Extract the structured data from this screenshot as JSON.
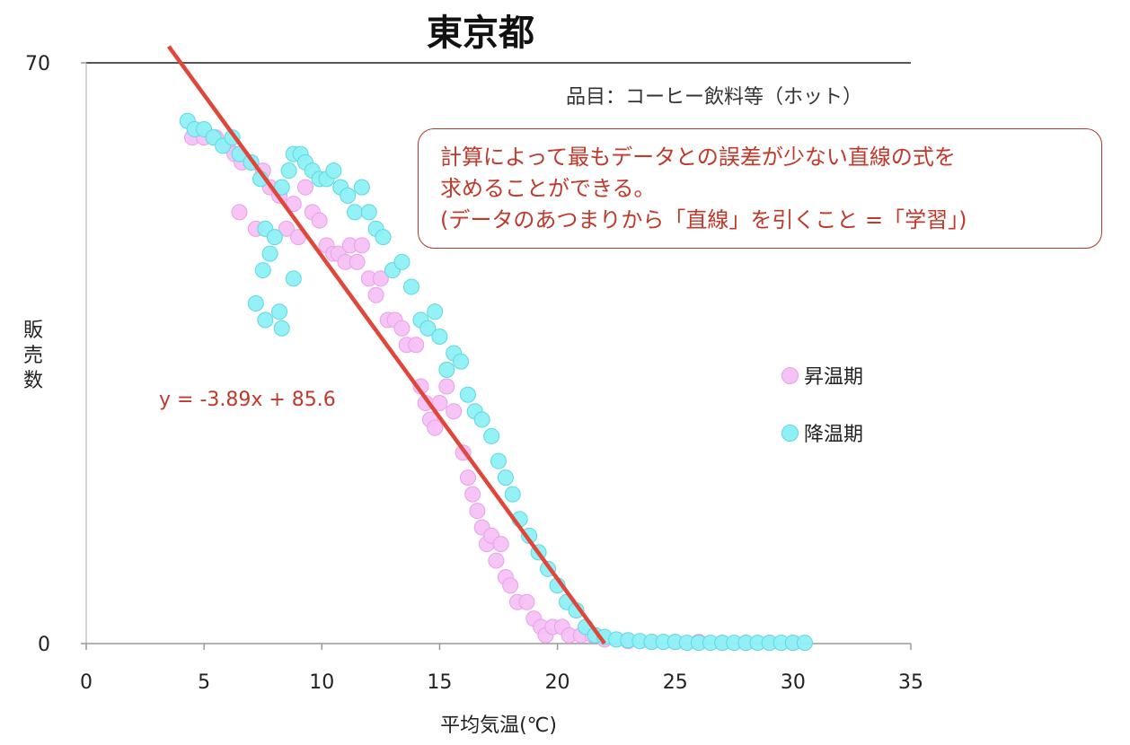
{
  "chart_data": {
    "type": "scatter",
    "title": "東京都",
    "subtitle": "品目：コーヒー飲料等（ホット）",
    "xlabel": "平均気温(℃)",
    "ylabel": "販売数",
    "xlim": [
      0,
      35
    ],
    "ylim": [
      0,
      70
    ],
    "xticks": [
      "0",
      "5",
      "10",
      "15",
      "20",
      "25",
      "30",
      "35"
    ],
    "yticks": [
      "0",
      "70"
    ],
    "legend_position": "right",
    "grid": false,
    "series": [
      {
        "name": "昇温期",
        "color": "#f5c2f5",
        "stroke": "#e8a0ea",
        "points": [
          [
            4.5,
            61
          ],
          [
            5,
            61
          ],
          [
            5.5,
            61
          ],
          [
            6,
            60
          ],
          [
            6.3,
            59
          ],
          [
            6.6,
            58
          ],
          [
            6.5,
            52
          ],
          [
            7,
            58
          ],
          [
            7.5,
            57
          ],
          [
            7.2,
            50
          ],
          [
            7.8,
            55
          ],
          [
            8.2,
            54
          ],
          [
            8.5,
            50
          ],
          [
            8.8,
            53
          ],
          [
            9,
            49
          ],
          [
            9.3,
            55
          ],
          [
            9.6,
            52
          ],
          [
            9.9,
            51
          ],
          [
            10.2,
            48
          ],
          [
            10.5,
            47
          ],
          [
            10.7,
            47
          ],
          [
            11,
            46
          ],
          [
            11.2,
            48
          ],
          [
            11.5,
            46
          ],
          [
            11.7,
            48
          ],
          [
            12,
            44
          ],
          [
            12.3,
            42
          ],
          [
            12.5,
            44
          ],
          [
            12.8,
            39
          ],
          [
            13.1,
            39
          ],
          [
            13.4,
            38
          ],
          [
            13.6,
            36
          ],
          [
            14,
            36
          ],
          [
            14.2,
            31
          ],
          [
            14.4,
            29
          ],
          [
            14.6,
            27
          ],
          [
            14.8,
            26
          ],
          [
            15,
            29
          ],
          [
            15.3,
            31
          ],
          [
            15.6,
            28
          ],
          [
            16,
            23
          ],
          [
            16.2,
            20
          ],
          [
            16.4,
            18
          ],
          [
            16.6,
            16
          ],
          [
            16.8,
            14
          ],
          [
            17,
            12
          ],
          [
            17.2,
            13
          ],
          [
            17.4,
            10
          ],
          [
            17.6,
            12
          ],
          [
            17.8,
            8
          ],
          [
            18,
            7
          ],
          [
            18.3,
            5
          ],
          [
            18.7,
            5
          ],
          [
            19,
            3
          ],
          [
            19.3,
            2
          ],
          [
            19.5,
            1
          ],
          [
            19.8,
            2
          ],
          [
            20.2,
            2
          ],
          [
            20.5,
            1
          ],
          [
            21,
            1
          ],
          [
            21.5,
            1
          ],
          [
            22,
            0.5
          ],
          [
            23,
            0.3
          ],
          [
            24,
            0.2
          ],
          [
            25,
            0.2
          ],
          [
            26,
            0.2
          ],
          [
            27,
            0.1
          ],
          [
            28,
            0.1
          ],
          [
            29,
            0.1
          ],
          [
            30,
            0.1
          ]
        ]
      },
      {
        "name": "降温期",
        "color": "#8ef0f5",
        "stroke": "#5fd8e0",
        "points": [
          [
            4.3,
            63
          ],
          [
            4.6,
            62
          ],
          [
            5,
            62
          ],
          [
            5.4,
            61
          ],
          [
            5.8,
            60
          ],
          [
            6.2,
            61
          ],
          [
            6.5,
            59
          ],
          [
            7,
            58
          ],
          [
            7.4,
            56
          ],
          [
            7.6,
            50
          ],
          [
            7.8,
            47
          ],
          [
            8,
            49
          ],
          [
            8.3,
            55
          ],
          [
            8.6,
            57
          ],
          [
            8.8,
            59
          ],
          [
            9.1,
            59
          ],
          [
            9.3,
            58
          ],
          [
            9.6,
            57
          ],
          [
            9.9,
            56
          ],
          [
            10.2,
            56
          ],
          [
            10.5,
            57
          ],
          [
            10.8,
            55
          ],
          [
            11.1,
            54
          ],
          [
            11.4,
            52
          ],
          [
            11.7,
            55
          ],
          [
            12,
            52
          ],
          [
            12.3,
            50
          ],
          [
            12.6,
            49
          ],
          [
            13,
            45
          ],
          [
            13.4,
            46
          ],
          [
            13.8,
            43
          ],
          [
            14.2,
            39
          ],
          [
            14.5,
            38
          ],
          [
            14.8,
            40
          ],
          [
            15,
            37
          ],
          [
            15.3,
            33
          ],
          [
            15.6,
            35
          ],
          [
            15.9,
            34
          ],
          [
            16.2,
            30
          ],
          [
            16.5,
            28
          ],
          [
            16.8,
            27
          ],
          [
            17.2,
            25
          ],
          [
            17.5,
            22
          ],
          [
            17.8,
            20
          ],
          [
            18.1,
            18
          ],
          [
            18.4,
            15
          ],
          [
            18.8,
            13
          ],
          [
            19.2,
            11
          ],
          [
            19.6,
            9
          ],
          [
            20,
            7
          ],
          [
            20.4,
            5
          ],
          [
            20.8,
            4
          ],
          [
            21.2,
            2
          ],
          [
            21.6,
            1
          ],
          [
            22,
            0.8
          ],
          [
            22.5,
            0.5
          ],
          [
            23,
            0.4
          ],
          [
            23.5,
            0.3
          ],
          [
            24,
            0.2
          ],
          [
            24.5,
            0.2
          ],
          [
            25,
            0.2
          ],
          [
            25.5,
            0.1
          ],
          [
            26,
            0.1
          ],
          [
            26.5,
            0.1
          ],
          [
            27,
            0.1
          ],
          [
            27.5,
            0.1
          ],
          [
            28,
            0.1
          ],
          [
            28.5,
            0.1
          ],
          [
            29,
            0.1
          ],
          [
            29.5,
            0.1
          ],
          [
            30,
            0.1
          ],
          [
            30.5,
            0.1
          ],
          [
            7.2,
            41
          ],
          [
            7.6,
            39
          ],
          [
            8.2,
            40
          ],
          [
            8.8,
            44
          ],
          [
            7.5,
            45
          ],
          [
            8.3,
            38
          ]
        ]
      }
    ],
    "regression": {
      "slope": -3.89,
      "intercept": 85.6,
      "x_range": [
        3.5,
        22
      ],
      "color": "#e0463a"
    },
    "annotations": {
      "equation": "y = -3.89x + 85.6",
      "note_lines": [
        "計算によって最もデータとの誤差が少ない直線の式を",
        "求めることができる。",
        "(データのあつまりから「直線」を引くこと =「学習」)"
      ]
    }
  }
}
